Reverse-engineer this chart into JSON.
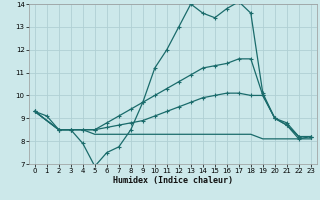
{
  "xlabel": "Humidex (Indice chaleur)",
  "bg_color": "#cce8ea",
  "grid_color": "#b0d0d4",
  "line_color": "#1a6b6b",
  "xlim": [
    -0.5,
    23.5
  ],
  "ylim": [
    7,
    14
  ],
  "xticks": [
    0,
    1,
    2,
    3,
    4,
    5,
    6,
    7,
    8,
    9,
    10,
    11,
    12,
    13,
    14,
    15,
    16,
    17,
    18,
    19,
    20,
    21,
    22,
    23
  ],
  "yticks": [
    7,
    8,
    9,
    10,
    11,
    12,
    13,
    14
  ],
  "line1_x": [
    0,
    1,
    2,
    3,
    4,
    5,
    6,
    7,
    8,
    9,
    10,
    11,
    12,
    13,
    14,
    15,
    16,
    17,
    18,
    19,
    20,
    21,
    22,
    23
  ],
  "line1_y": [
    9.3,
    9.1,
    8.5,
    8.5,
    7.9,
    6.9,
    7.5,
    7.75,
    8.5,
    9.7,
    11.2,
    12.0,
    13.0,
    14.0,
    13.6,
    13.4,
    13.8,
    14.1,
    13.6,
    10.1,
    9.0,
    8.7,
    8.1,
    8.2
  ],
  "line2_x": [
    0,
    2,
    3,
    4,
    5,
    6,
    7,
    8,
    9,
    10,
    11,
    12,
    13,
    14,
    15,
    16,
    17,
    18,
    19,
    20,
    21,
    22,
    23
  ],
  "line2_y": [
    9.3,
    8.5,
    8.5,
    8.5,
    8.5,
    8.8,
    9.1,
    9.4,
    9.7,
    10.0,
    10.3,
    10.6,
    10.9,
    11.2,
    11.3,
    11.4,
    11.6,
    11.6,
    10.0,
    9.0,
    8.8,
    8.2,
    8.2
  ],
  "line3_x": [
    0,
    2,
    3,
    4,
    5,
    6,
    7,
    8,
    9,
    10,
    11,
    12,
    13,
    14,
    15,
    16,
    17,
    18,
    19,
    20,
    21,
    22,
    23
  ],
  "line3_y": [
    9.3,
    8.5,
    8.5,
    8.5,
    8.5,
    8.6,
    8.7,
    8.8,
    8.9,
    9.1,
    9.3,
    9.5,
    9.7,
    9.9,
    10.0,
    10.1,
    10.1,
    10.0,
    10.0,
    9.0,
    8.7,
    8.2,
    8.2
  ],
  "line4_x": [
    0,
    2,
    3,
    4,
    5,
    6,
    7,
    8,
    9,
    10,
    11,
    12,
    13,
    14,
    15,
    16,
    17,
    18,
    19,
    20,
    21,
    22,
    23
  ],
  "line4_y": [
    9.3,
    8.5,
    8.5,
    8.5,
    8.3,
    8.3,
    8.3,
    8.3,
    8.3,
    8.3,
    8.3,
    8.3,
    8.3,
    8.3,
    8.3,
    8.3,
    8.3,
    8.3,
    8.1,
    8.1,
    8.1,
    8.1,
    8.1
  ]
}
